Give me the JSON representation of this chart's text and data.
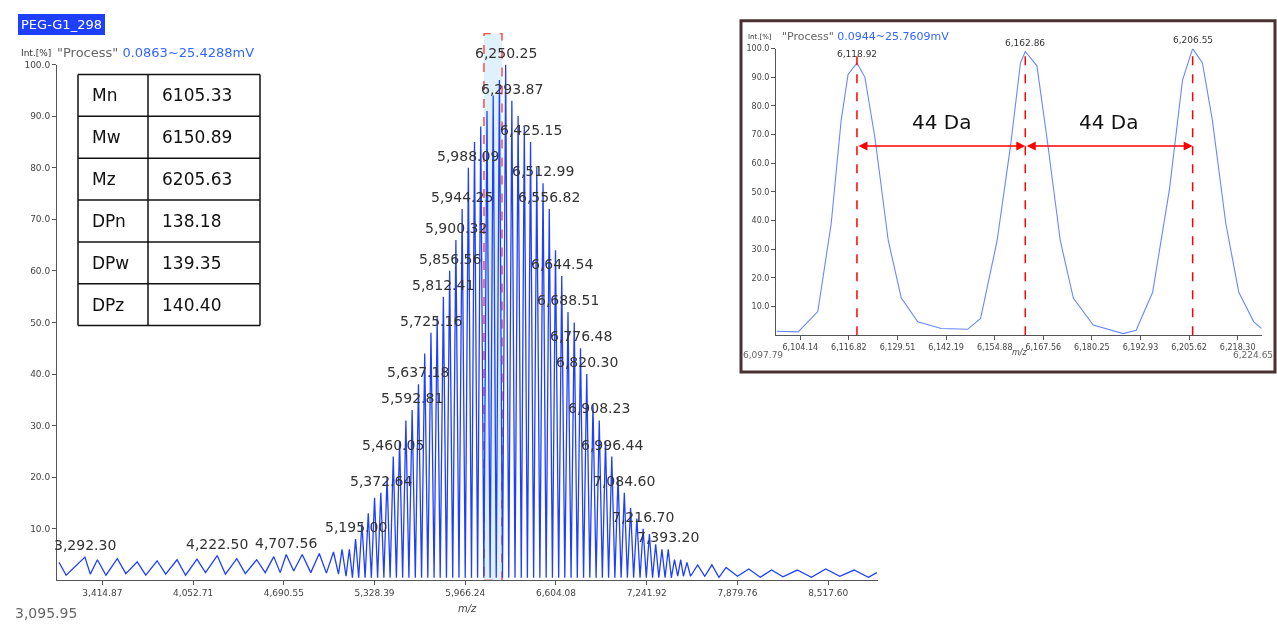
{
  "chart_data": [
    {
      "type": "line",
      "title": "PEG-G1_298",
      "subtitle": "\"Process\" 0.0863~25.4288mV",
      "ylabel": "Int.[%]",
      "xlabel": "m/z",
      "xlim": [
        3095.95,
        8868
      ],
      "ylim": [
        0,
        100
      ],
      "xticks": [
        {
          "value": 3414.87,
          "label": "3,414.87"
        },
        {
          "value": 4052.71,
          "label": "4,052.71"
        },
        {
          "value": 4690.55,
          "label": "4,690.55"
        },
        {
          "value": 5328.39,
          "label": "5,328.39"
        },
        {
          "value": 5966.24,
          "label": "5,966.24"
        },
        {
          "value": 6604.08,
          "label": "6,604.08"
        },
        {
          "value": 7241.92,
          "label": "7,241.92"
        },
        {
          "value": 7879.76,
          "label": "7,879.76"
        },
        {
          "value": 8517.6,
          "label": "8,517.60"
        }
      ],
      "yticks": [
        {
          "value": 10,
          "label": "10.0"
        },
        {
          "value": 20,
          "label": "20.0"
        },
        {
          "value": 30,
          "label": "30.0"
        },
        {
          "value": 40,
          "label": "40.0"
        },
        {
          "value": 50,
          "label": "50.0"
        },
        {
          "value": 60,
          "label": "60.0"
        },
        {
          "value": 70,
          "label": "70.0"
        },
        {
          "value": 80,
          "label": "80.0"
        },
        {
          "value": 90,
          "label": "90.0"
        },
        {
          "value": 100,
          "label": "100.0"
        }
      ],
      "grid": false,
      "marker": "none",
      "line_style": "solid",
      "bands": [
        {
          "axis": "x",
          "from": 6097.79,
          "to": 6224.65,
          "color": "#dff2fb"
        }
      ],
      "series": [
        {
          "color": "#1f3fff",
          "x": [
            3110,
            3160,
            3292.3,
            3330,
            3380,
            3440,
            3520,
            3580,
            3660,
            3720,
            3800,
            3860,
            3940,
            4000,
            4080,
            4140,
            4222.5,
            4280,
            4360,
            4420,
            4500,
            4560,
            4620,
            4665,
            4707.56,
            4760,
            4820,
            4880,
            4940,
            4990,
            5040,
            5075,
            5100,
            5128,
            5151.2,
            5173,
            5195.0,
            5217,
            5239.8,
            5262,
            5284.3,
            5306,
            5328.6,
            5350,
            5372.64,
            5394,
            5416.3,
            5438,
            5460.05,
            5482,
            5504.5,
            5526,
            5548.9,
            5570,
            5592.81,
            5615,
            5637.18,
            5659,
            5681.2,
            5703,
            5725.16,
            5747,
            5768.6,
            5790,
            5812.41,
            5834,
            5856.56,
            5878,
            5900.32,
            5922,
            5944.25,
            5966,
            5988.09,
            6010,
            6031.3,
            6053,
            6075.1,
            6097,
            6118.9,
            6141,
            6162.6,
            6184,
            6206.4,
            6228,
            6250.25,
            6272,
            6293.87,
            6316,
            6337.7,
            6360,
            6381.4,
            6403,
            6425.15,
            6447,
            6469.1,
            6491,
            6512.99,
            6535,
            6556.82,
            6579,
            6600.7,
            6623,
            6644.54,
            6666,
            6688.51,
            6710,
            6732.5,
            6754,
            6776.48,
            6798,
            6820.3,
            6842,
            6864.3,
            6886,
            6908.23,
            6930,
            6952.3,
            6974,
            6996.44,
            7018,
            7040.5,
            7062,
            7084.6,
            7106,
            7128.6,
            7150,
            7172.7,
            7195,
            7216.7,
            7239,
            7260.8,
            7283,
            7304.9,
            7327,
            7349.0,
            7371,
            7393.2,
            7415,
            7437.3,
            7460,
            7481,
            7500,
            7525,
            7550,
            7600,
            7650,
            7700,
            7750,
            7800,
            7880,
            7960,
            8040,
            8120,
            8200,
            8300,
            8400,
            8500,
            8600,
            8700,
            8800,
            8860
          ],
          "values": [
            3.5,
            1.0,
            4.5,
            1.2,
            4,
            1,
            4.2,
            1.3,
            3.6,
            1,
            3.8,
            1.2,
            4,
            1,
            4.1,
            1.5,
            4.8,
            1.2,
            4.2,
            1.3,
            4,
            1.5,
            4.6,
            1.5,
            5,
            1.8,
            5,
            1.5,
            5.2,
            1.4,
            5.5,
            1.2,
            6,
            0.8,
            6,
            0.5,
            8,
            0.5,
            11,
            0.5,
            13,
            0.5,
            16,
            0.5,
            17,
            0.5,
            20,
            0.5,
            24,
            0.5,
            27,
            0.5,
            31,
            0.5,
            33,
            0.5,
            38,
            0.5,
            44,
            0.5,
            48,
            0.5,
            51,
            0.5,
            55,
            0.5,
            60,
            0.5,
            66,
            0.5,
            72,
            0.5,
            80,
            0.5,
            85,
            0.5,
            88,
            0.5,
            91,
            0.5,
            94,
            0.5,
            97,
            0.5,
            100,
            0.5,
            93,
            0.5,
            90,
            0.5,
            88,
            0.5,
            85,
            0.5,
            80,
            0.5,
            77,
            0.5,
            72,
            0.5,
            64,
            0.5,
            59,
            0.5,
            52,
            0.5,
            50,
            0.5,
            45,
            0.5,
            40,
            0.5,
            34,
            0.5,
            31,
            0.5,
            27,
            0.5,
            24,
            0.5,
            20,
            0.5,
            17,
            0.5,
            14,
            0.5,
            12,
            0.5,
            10,
            0.5,
            9,
            0.5,
            7,
            0.5,
            6,
            0.5,
            6,
            0.5,
            4,
            0.8,
            4,
            0.8,
            3.5,
            0.8,
            3,
            0.8,
            3,
            0.6,
            2.5,
            0.8,
            2.2,
            0.6,
            2,
            0.7,
            2,
            0.6,
            2.2,
            0.8,
            2,
            0.6,
            1.5
          ]
        }
      ],
      "annotations": [
        "3,095.95",
        "Mn",
        "6105.33",
        "Mw",
        "6150.89",
        "Mz",
        "6205.63",
        "DPn",
        "138.18",
        "DPw",
        "139.35",
        "DPz",
        "140.40",
        {
          "text": "3,292.30",
          "x": 3292.3,
          "y": 4.5
        },
        {
          "text": "4,222.50",
          "x": 4222.5,
          "y": 4.8
        },
        {
          "text": "4,707.56",
          "x": 4707.56,
          "y": 5
        },
        {
          "text": "5,195.00",
          "x": 5195.0,
          "y": 8
        },
        {
          "text": "5,372.64",
          "x": 5372.64,
          "y": 17
        },
        {
          "text": "5,460.05",
          "x": 5460.05,
          "y": 24
        },
        {
          "text": "5,592.81",
          "x": 5592.81,
          "y": 33
        },
        {
          "text": "5,637.18",
          "x": 5637.18,
          "y": 38
        },
        {
          "text": "5,725.16",
          "x": 5725.16,
          "y": 48
        },
        {
          "text": "5,812.41",
          "x": 5812.41,
          "y": 55
        },
        {
          "text": "5,856.56",
          "x": 5856.56,
          "y": 60
        },
        {
          "text": "5,900.32",
          "x": 5900.32,
          "y": 66
        },
        {
          "text": "5,944.25",
          "x": 5944.25,
          "y": 72
        },
        {
          "text": "5,988.09",
          "x": 5988.09,
          "y": 80
        },
        {
          "text": "6,250.25",
          "x": 6250.25,
          "y": 100
        },
        {
          "text": "6,293.87",
          "x": 6293.87,
          "y": 93
        },
        {
          "text": "6,425.15",
          "x": 6425.15,
          "y": 85
        },
        {
          "text": "6,512.99",
          "x": 6512.99,
          "y": 77
        },
        {
          "text": "6,556.82",
          "x": 6556.82,
          "y": 72
        },
        {
          "text": "6,644.54",
          "x": 6644.54,
          "y": 59
        },
        {
          "text": "6,688.51",
          "x": 6688.51,
          "y": 52
        },
        {
          "text": "6,776.48",
          "x": 6776.48,
          "y": 45
        },
        {
          "text": "6,820.30",
          "x": 6820.3,
          "y": 40
        },
        {
          "text": "6,908.23",
          "x": 6908.23,
          "y": 31
        },
        {
          "text": "6,996.44",
          "x": 6996.44,
          "y": 24
        },
        {
          "text": "7,084.60",
          "x": 7084.6,
          "y": 17
        },
        {
          "text": "7,216.70",
          "x": 7216.7,
          "y": 10
        },
        {
          "text": "7,393.20",
          "x": 7393.2,
          "y": 6
        }
      ]
    },
    {
      "type": "line",
      "subtitle": "\"Process\" 0.0944~25.7609mV",
      "ylabel": "Int.[%]",
      "xlabel": "m/z",
      "xlim": [
        6097.79,
        6224.65
      ],
      "ylim": [
        0,
        100
      ],
      "xticks": [
        {
          "value": 6104.14,
          "label": "6,104.14"
        },
        {
          "value": 6116.82,
          "label": "6,116.82"
        },
        {
          "value": 6129.51,
          "label": "6,129.51"
        },
        {
          "value": 6142.19,
          "label": "6,142.19"
        },
        {
          "value": 6154.88,
          "label": "6,154.88"
        },
        {
          "value": 6167.56,
          "label": "6,167.56"
        },
        {
          "value": 6180.25,
          "label": "6,180.25"
        },
        {
          "value": 6192.93,
          "label": "6,192.93"
        },
        {
          "value": 6205.62,
          "label": "6,205.62"
        },
        {
          "value": 6218.3,
          "label": "6,218.30"
        }
      ],
      "yticks": [
        {
          "value": 10,
          "label": "10.0"
        },
        {
          "value": 20,
          "label": "20.0"
        },
        {
          "value": 30,
          "label": "30.0"
        },
        {
          "value": 40,
          "label": "40.0"
        },
        {
          "value": 50,
          "label": "50.0"
        },
        {
          "value": 60,
          "label": "60.0"
        },
        {
          "value": 70,
          "label": "70.0"
        },
        {
          "value": 80,
          "label": "80.0"
        },
        {
          "value": 90,
          "label": "90.0"
        },
        {
          "value": 100,
          "label": "100.0"
        }
      ],
      "grid": false,
      "marker": "none",
      "line_style": "solid",
      "ref_lines": [
        {
          "axis": "x",
          "value": 6118.92,
          "color": "#ff0000",
          "line_style": "dashed"
        },
        {
          "axis": "x",
          "value": 6162.86,
          "color": "#ff0000",
          "line_style": "dashed"
        },
        {
          "axis": "x",
          "value": 6206.55,
          "color": "#ff0000",
          "line_style": "dashed"
        }
      ],
      "series": [
        {
          "color": "#6688ff",
          "x": [
            6097.96,
            6103.57,
            6108.7,
            6112.2,
            6114.8,
            6116.6,
            6118.92,
            6121.0,
            6123.6,
            6127.1,
            6130.5,
            6134.8,
            6140.9,
            6147.8,
            6151.2,
            6155.5,
            6159.0,
            6161.6,
            6162.86,
            6165.9,
            6168.5,
            6172.0,
            6175.4,
            6180.6,
            6188.4,
            6191.8,
            6196.1,
            6200.5,
            6203.9,
            6206.55,
            6209.1,
            6211.7,
            6215.2,
            6218.6,
            6222.5,
            6224.5
          ],
          "values": [
            1.4,
            1.2,
            8.3,
            39,
            75,
            91,
            95,
            90,
            69,
            33,
            13,
            4.7,
            2.4,
            2.1,
            5.9,
            33,
            66,
            95,
            99,
            94,
            69,
            33,
            13,
            3.6,
            0.6,
            1.8,
            15,
            51,
            89,
            100,
            95,
            75,
            39,
            15,
            4.7,
            2.4
          ]
        }
      ],
      "annotations": [
        "6,097.79",
        "6,224.65",
        {
          "text": "6,118.92",
          "x": 6118.92,
          "y": 95
        },
        {
          "text": "6,162.86",
          "x": 6162.86,
          "y": 99
        },
        {
          "text": "6,206.55",
          "x": 6206.55,
          "y": 100
        },
        "44 Da",
        "44 Da"
      ]
    }
  ]
}
